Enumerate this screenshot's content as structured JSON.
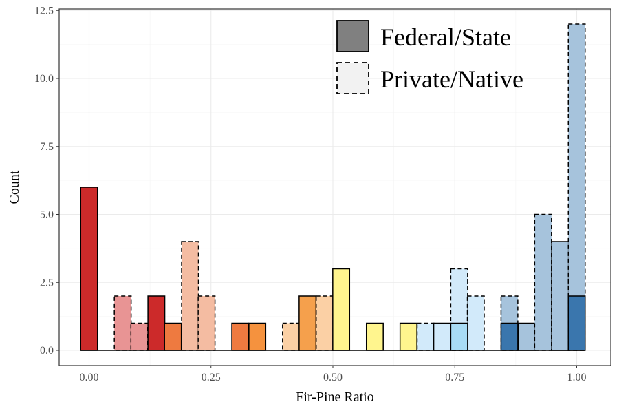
{
  "chart_data": {
    "type": "bar",
    "subtype": "histogram",
    "title": "",
    "xlabel": "Fir-Pine Ratio",
    "ylabel": "Count",
    "xlim": [
      -0.055,
      1.07
    ],
    "ylim": [
      -0.6,
      12.6
    ],
    "x_ticks": [
      0,
      0.25,
      0.5,
      0.75,
      1.0
    ],
    "x_tick_labels": [
      "0.00",
      "0.25",
      "0.50",
      "0.75",
      "1.00"
    ],
    "y_ticks": [
      0,
      2.5,
      5,
      7.5,
      10,
      12.5
    ],
    "y_tick_labels": [
      "0.0",
      "2.5",
      "5.0",
      "7.5",
      "10.0",
      "12.5"
    ],
    "grid": true,
    "legend_position": "top-right",
    "bin_width": 0.0345,
    "legend": [
      {
        "label": "Federal/State",
        "style": "solid"
      },
      {
        "label": "Private/Native",
        "style": "dashed"
      }
    ],
    "bars": [
      {
        "x": 0.0,
        "count": 6,
        "group": "Federal/State",
        "color": "#cc2a2a"
      },
      {
        "x": 0.069,
        "count": 2,
        "group": "Private/Native",
        "color": "#e89494"
      },
      {
        "x": 0.103,
        "count": 1,
        "group": "Private/Native",
        "color": "#e89494"
      },
      {
        "x": 0.138,
        "count": 2,
        "group": "Federal/State",
        "color": "#cc2a2a"
      },
      {
        "x": 0.172,
        "count": 1,
        "group": "Federal/State",
        "color": "#ee7a40"
      },
      {
        "x": 0.207,
        "count": 4,
        "group": "Private/Native",
        "color": "#f4bca2"
      },
      {
        "x": 0.241,
        "count": 2,
        "group": "Private/Native",
        "color": "#f4bca2"
      },
      {
        "x": 0.31,
        "count": 1,
        "group": "Federal/State",
        "color": "#ee7a40"
      },
      {
        "x": 0.345,
        "count": 1,
        "group": "Federal/State",
        "color": "#f5923e"
      },
      {
        "x": 0.414,
        "count": 1,
        "group": "Private/Native",
        "color": "#fbd0a5"
      },
      {
        "x": 0.448,
        "count": 2,
        "group": "Federal/State",
        "color": "#f5a04c"
      },
      {
        "x": 0.483,
        "count": 2,
        "group": "Private/Native",
        "color": "#fbd0a5"
      },
      {
        "x": 0.517,
        "count": 3,
        "group": "Federal/State",
        "color": "#fff58e"
      },
      {
        "x": 0.586,
        "count": 1,
        "group": "Federal/State",
        "color": "#fff58e"
      },
      {
        "x": 0.655,
        "count": 1,
        "group": "Federal/State",
        "color": "#fff58e"
      },
      {
        "x": 0.69,
        "count": 1,
        "group": "Private/Native",
        "color": "#d2eafa"
      },
      {
        "x": 0.724,
        "count": 1,
        "group": "Federal/State",
        "color": "#d2eafa"
      },
      {
        "x": 0.759,
        "count": 3,
        "group": "Private/Native",
        "color": "#d2eafa"
      },
      {
        "x": 0.793,
        "count": 2,
        "group": "Private/Native",
        "color": "#d2eafa"
      },
      {
        "x": 0.862,
        "count": 2,
        "group": "Private/Native",
        "color": "#a6c3dc"
      },
      {
        "x": 0.897,
        "count": 1,
        "group": "Federal/State",
        "color": "#a6c3dc"
      },
      {
        "x": 0.931,
        "count": 5,
        "group": "Private/Native",
        "color": "#a6c3dc"
      },
      {
        "x": 0.966,
        "count": 4,
        "group": "Federal/State",
        "color": "#a6c3dc"
      },
      {
        "x": 1.0,
        "count": 12,
        "group": "Private/Native",
        "color": "#a6c3dc"
      }
    ],
    "overlays": [
      {
        "x": 0.759,
        "count": 1,
        "group": "Federal/State",
        "color": "#a8dcf5"
      },
      {
        "x": 0.862,
        "count": 1,
        "group": "Federal/State",
        "color": "#3a76ad"
      },
      {
        "x": 1.0,
        "count": 2,
        "group": "Federal/State",
        "color": "#3a76ad"
      }
    ]
  }
}
